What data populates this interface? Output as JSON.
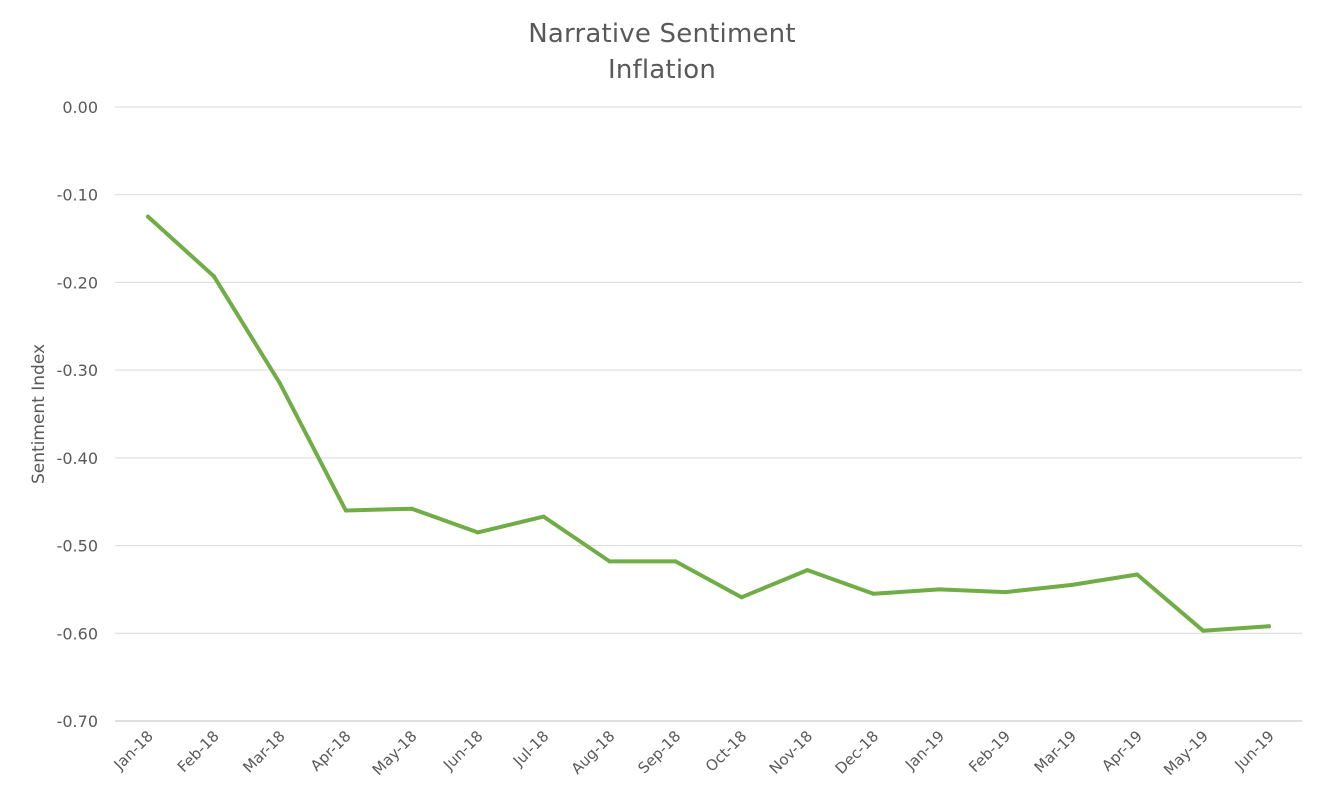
{
  "chart_data": {
    "type": "line",
    "title": "Narrative Sentiment",
    "subtitle": "Inflation",
    "xlabel": "",
    "ylabel": "Sentiment Index",
    "ylim": [
      -0.7,
      0.0
    ],
    "yticks": [
      "0.00",
      "-0.10",
      "-0.20",
      "-0.30",
      "-0.40",
      "-0.50",
      "-0.60",
      "-0.70"
    ],
    "ytick_values": [
      0.0,
      -0.1,
      -0.2,
      -0.3,
      -0.4,
      -0.5,
      -0.6,
      -0.7
    ],
    "grid": true,
    "legend": "none",
    "categories": [
      "Jan-18",
      "Feb-18",
      "Mar-18",
      "Apr-18",
      "May-18",
      "Jun-18",
      "Jul-18",
      "Aug-18",
      "Sep-18",
      "Oct-18",
      "Nov-18",
      "Dec-18",
      "Jan-19",
      "Feb-19",
      "Mar-19",
      "Apr-19",
      "May-19",
      "Jun-19"
    ],
    "series": [
      {
        "color": "#70ad47",
        "values": [
          -0.125,
          -0.193,
          -0.315,
          -0.46,
          -0.458,
          -0.485,
          -0.467,
          -0.518,
          -0.518,
          -0.559,
          -0.528,
          -0.555,
          -0.55,
          -0.553,
          -0.545,
          -0.533,
          -0.597,
          -0.592
        ]
      }
    ]
  }
}
